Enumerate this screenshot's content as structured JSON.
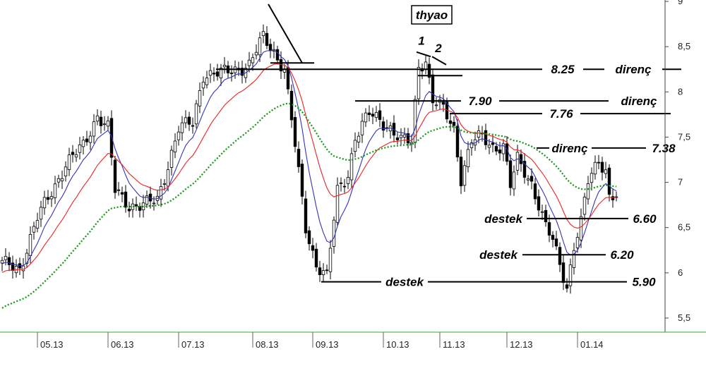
{
  "chart_data": {
    "type": "candlestick",
    "title": "thyao",
    "ylim": [
      5.4,
      9.0
    ],
    "y_ticks": [
      "9",
      "8,5",
      "8",
      "7,5",
      "7",
      "6,5",
      "6",
      "5,5"
    ],
    "y_tick_values": [
      9.0,
      8.5,
      8.0,
      7.5,
      7.0,
      6.5,
      6.0,
      5.5
    ],
    "x_labels": [
      "05.13",
      "06.13",
      "07.13",
      "08.13",
      "09.13",
      "10.13",
      "11.13",
      "12.13",
      "01.14"
    ],
    "x_label_index": [
      10,
      30,
      50,
      71,
      88,
      108,
      124,
      143,
      163
    ],
    "n_bars": 175,
    "anchors": [
      [
        0,
        6.1
      ],
      [
        5,
        6.05
      ],
      [
        10,
        6.6
      ],
      [
        18,
        7.2
      ],
      [
        23,
        7.4
      ],
      [
        27,
        7.75
      ],
      [
        30,
        7.6
      ],
      [
        32,
        6.9
      ],
      [
        36,
        6.75
      ],
      [
        40,
        6.75
      ],
      [
        44,
        6.8
      ],
      [
        47,
        7.2
      ],
      [
        50,
        7.6
      ],
      [
        54,
        7.65
      ],
      [
        57,
        8.2
      ],
      [
        62,
        8.2
      ],
      [
        66,
        8.25
      ],
      [
        70,
        8.3
      ],
      [
        74,
        8.6
      ],
      [
        77,
        8.45
      ],
      [
        80,
        8.25
      ],
      [
        83,
        7.4
      ],
      [
        86,
        6.5
      ],
      [
        89,
        6.1
      ],
      [
        92,
        5.95
      ],
      [
        95,
        6.9
      ],
      [
        98,
        7.1
      ],
      [
        100,
        7.5
      ],
      [
        104,
        7.75
      ],
      [
        107,
        7.7
      ],
      [
        110,
        7.6
      ],
      [
        113,
        7.45
      ],
      [
        116,
        7.45
      ],
      [
        118,
        8.3
      ],
      [
        120,
        8.35
      ],
      [
        122,
        7.9
      ],
      [
        125,
        7.8
      ],
      [
        128,
        7.6
      ],
      [
        130,
        7.05
      ],
      [
        133,
        7.45
      ],
      [
        136,
        7.5
      ],
      [
        139,
        7.4
      ],
      [
        142,
        7.4
      ],
      [
        144,
        6.95
      ],
      [
        146,
        7.25
      ],
      [
        150,
        7.0
      ],
      [
        154,
        6.5
      ],
      [
        156,
        6.35
      ],
      [
        158,
        6.1
      ],
      [
        160,
        5.85
      ],
      [
        162,
        6.3
      ],
      [
        164,
        6.55
      ],
      [
        166,
        7.0
      ],
      [
        169,
        7.25
      ],
      [
        171,
        7.15
      ],
      [
        172,
        6.85
      ]
    ],
    "series": [
      {
        "name": "",
        "kind": "ema",
        "period": 8,
        "color": "#3333bb",
        "style": "solid"
      },
      {
        "name": "",
        "kind": "ema",
        "period": 18,
        "color": "#ee2222",
        "style": "solid"
      },
      {
        "name": "",
        "kind": "ema",
        "period": 48,
        "color": "#119911",
        "style": "dotted"
      }
    ],
    "annotations": {
      "hlines": [
        {
          "y": 8.25,
          "x1": 306,
          "x2": 965,
          "label": "8.25",
          "label_x": 797,
          "word": "direnç",
          "word_x": 897,
          "gaps": [
            [
              768,
              826
            ],
            [
              856,
              938
            ]
          ]
        },
        {
          "y": 7.9,
          "x1": 503,
          "x2": 945,
          "label": "7.90",
          "label_x": 680,
          "word": "direnç",
          "word_x": 905,
          "gaps": [
            [
              653,
              707
            ],
            [
              862,
              948
            ]
          ]
        },
        {
          "y": 7.76,
          "x1": 637,
          "x2": 950,
          "label": "7.76",
          "label_x": 795,
          "gaps": [
            [
              768,
              822
            ]
          ]
        },
        {
          "y": 7.38,
          "x1": 760,
          "x2": 915,
          "label": "7.38",
          "label_x": 940,
          "word": "direnç",
          "word_x": 807,
          "gaps": [
            [
              778,
              838
            ]
          ]
        },
        {
          "y": 6.6,
          "x1": 683,
          "x2": 890,
          "label": "6.60",
          "label_x": 913,
          "word": "destek",
          "word_x": 713,
          "gaps": [
            [
              680,
              746
            ]
          ]
        },
        {
          "y": 6.2,
          "x1": 678,
          "x2": 858,
          "label": "6.20",
          "label_x": 881,
          "word": "destek",
          "word_x": 706,
          "gaps": [
            [
              672,
              740
            ]
          ]
        },
        {
          "y": 5.9,
          "x1": 455,
          "x2": 888,
          "label": "5.90",
          "label_x": 912,
          "word": "destek",
          "word_x": 573,
          "gaps": [
            [
              540,
              606
            ]
          ]
        }
      ],
      "short_lines": [
        {
          "x1": 380,
          "y1": 8.97,
          "x2": 428,
          "y2": 8.32
        },
        {
          "x1": 383,
          "y1": 8.32,
          "x2": 445,
          "y2": 8.32
        },
        {
          "x1": 592,
          "y1": 8.18,
          "x2": 655,
          "y2": 8.18
        },
        {
          "x1": 590,
          "y1": 8.44,
          "x2": 610,
          "y2": 8.39
        },
        {
          "x1": 612,
          "y1": 8.39,
          "x2": 632,
          "y2": 8.3
        }
      ],
      "point_labels": [
        {
          "text": "1",
          "x": 597,
          "y": 8.52
        },
        {
          "text": "2",
          "x": 621,
          "y": 8.44
        }
      ]
    }
  }
}
